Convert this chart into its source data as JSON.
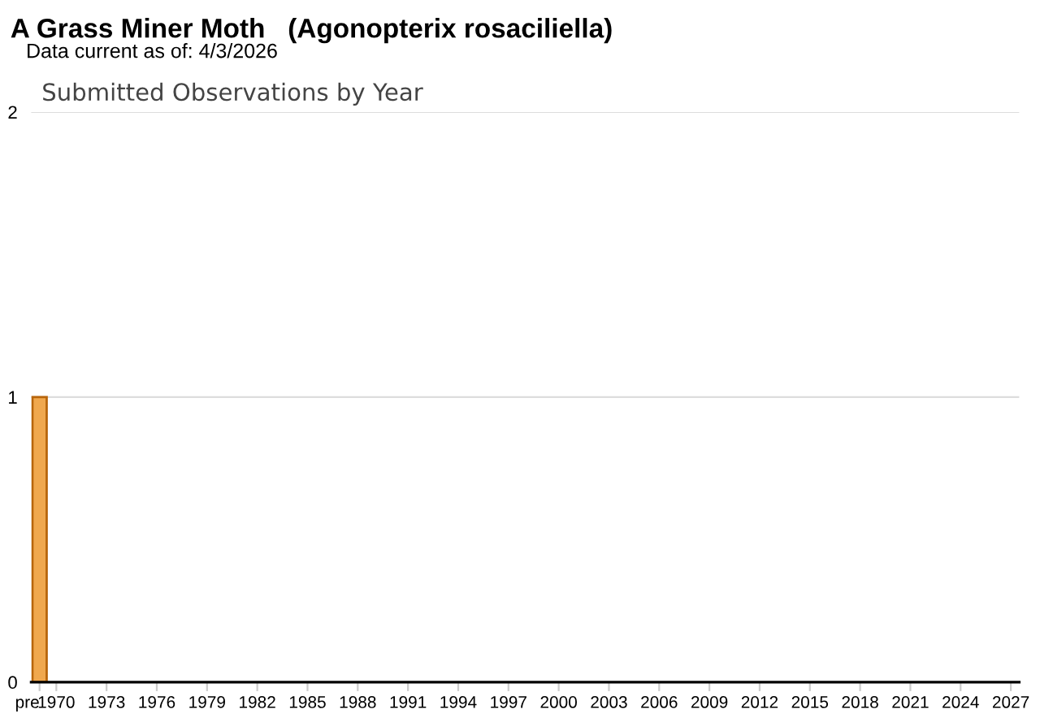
{
  "chart_data": {
    "type": "bar",
    "title": "A Grass Miner Moth   (Agonopterix rosaciliella)",
    "subtitle": "Data current as of: 4/3/2026",
    "annotations": [
      "Submitted Observations by Year"
    ],
    "categories": [
      "pre",
      "1970",
      null,
      null,
      "1973",
      null,
      null,
      "1976",
      null,
      null,
      "1979",
      null,
      null,
      "1982",
      null,
      null,
      "1985",
      null,
      null,
      "1988",
      null,
      null,
      "1991",
      null,
      null,
      "1994",
      null,
      null,
      "1997",
      null,
      null,
      "2000",
      null,
      null,
      "2003",
      null,
      null,
      "2006",
      null,
      null,
      "2009",
      null,
      null,
      "2012",
      null,
      null,
      "2015",
      null,
      null,
      "2018",
      null,
      null,
      "2021",
      null,
      null,
      "2024",
      null,
      null,
      "2027"
    ],
    "values": [
      1,
      0,
      0,
      0,
      0,
      0,
      0,
      0,
      0,
      0,
      0,
      0,
      0,
      0,
      0,
      0,
      0,
      0,
      0,
      0,
      0,
      0,
      0,
      0,
      0,
      0,
      0,
      0,
      0,
      0,
      0,
      0,
      0,
      0,
      0,
      0,
      0,
      0,
      0,
      0,
      0,
      0,
      0,
      0,
      0,
      0,
      0,
      0,
      0,
      0,
      0,
      0,
      0,
      0,
      0,
      0,
      0,
      0,
      0
    ],
    "color": "#f0a84e",
    "ylim": [
      0,
      2
    ],
    "yticks": [
      0,
      1,
      2
    ],
    "grid": "y"
  }
}
